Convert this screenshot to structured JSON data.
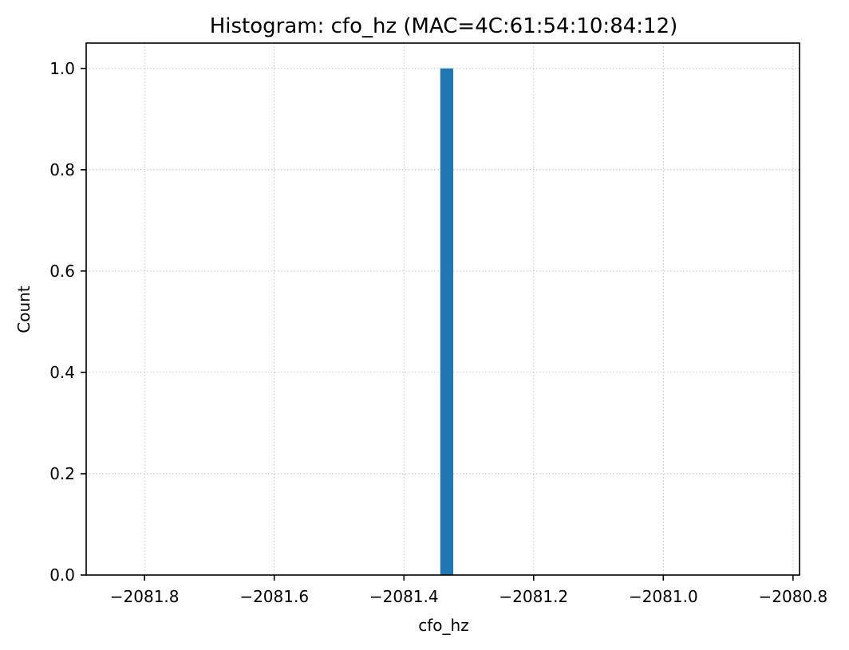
{
  "chart_data": {
    "type": "bar",
    "title": "Histogram: cfo_hz (MAC=4C:61:54:10:84:12)",
    "xlabel": "cfo_hz",
    "ylabel": "Count",
    "xlim": [
      -2081.89,
      -2080.79
    ],
    "ylim": [
      0,
      1.05
    ],
    "bins": [
      {
        "x_start": -2081.344,
        "x_end": -2081.324,
        "count": 1.0
      }
    ],
    "xticks": [
      -2081.8,
      -2081.6,
      -2081.4,
      -2081.2,
      -2081.0,
      -2080.8
    ],
    "xtick_labels": [
      "−2081.8",
      "−2081.6",
      "−2081.4",
      "−2081.2",
      "−2081.0",
      "−2080.8"
    ],
    "yticks": [
      0.0,
      0.2,
      0.4,
      0.6,
      0.8,
      1.0
    ],
    "ytick_labels": [
      "0.0",
      "0.2",
      "0.4",
      "0.6",
      "0.8",
      "1.0"
    ],
    "grid": true,
    "bar_color": "#1f77b4"
  }
}
